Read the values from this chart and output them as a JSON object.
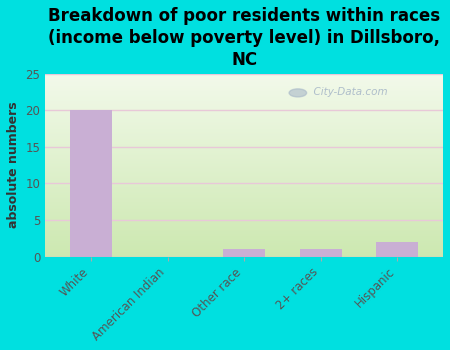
{
  "title": "Breakdown of poor residents within races\n(income below poverty level) in Dillsboro,\nNC",
  "categories": [
    "White",
    "American Indian",
    "Other race",
    "2+ races",
    "Hispanic"
  ],
  "values": [
    20,
    0,
    1,
    1,
    2
  ],
  "bar_color": "#c9afd4",
  "ylabel": "absolute numbers",
  "ylim": [
    0,
    25
  ],
  "yticks": [
    0,
    5,
    10,
    15,
    20,
    25
  ],
  "background_outer": "#00e0e0",
  "background_plot_top": "#e8f4e0",
  "background_plot_bottom": "#d4ecbe",
  "grid_color": "#e8c8d8",
  "watermark": "City-Data.com",
  "title_fontsize": 12,
  "ylabel_fontsize": 9,
  "tick_fontsize": 8.5
}
